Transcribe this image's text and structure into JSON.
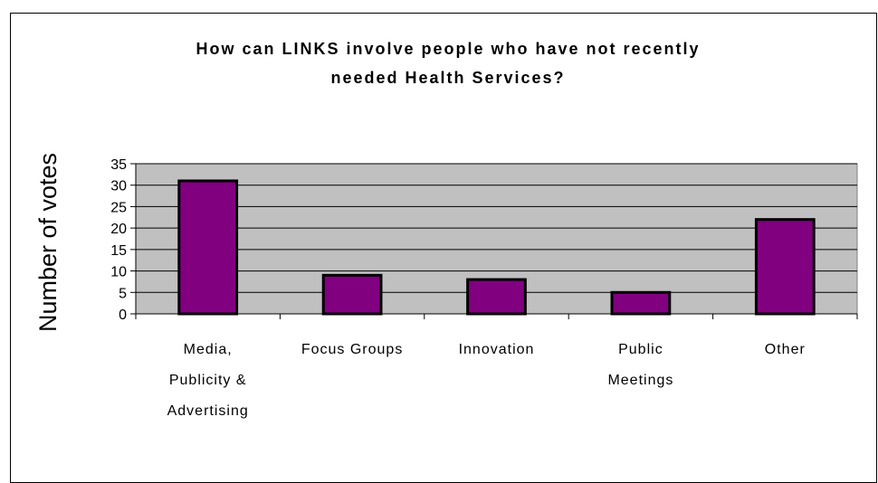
{
  "chart_data": {
    "type": "bar",
    "title": "How can LINKS involve people who have not recently needed Health Services?",
    "title_lines": [
      "How can LINKS involve people who have not recently",
      "needed Health Services?"
    ],
    "ylabel": "Number of votes",
    "xlabel": "",
    "categories": [
      "Media, Publicity & Advertising",
      "Focus Groups",
      "Innovation",
      "Public Meetings",
      "Other"
    ],
    "category_lines": [
      [
        "Media,",
        "Publicity &",
        "Advertising"
      ],
      [
        "Focus Groups"
      ],
      [
        "Innovation"
      ],
      [
        "Public",
        "Meetings"
      ],
      [
        "Other"
      ]
    ],
    "values": [
      31,
      9,
      8,
      5,
      22
    ],
    "ylim": [
      0,
      35
    ],
    "yticks": [
      0,
      5,
      10,
      15,
      20,
      25,
      30,
      35
    ],
    "grid": true,
    "legend": "none",
    "colors": {
      "bar": "#800080",
      "plot_background": "#c0c0c0",
      "gridline": "#000000"
    }
  }
}
